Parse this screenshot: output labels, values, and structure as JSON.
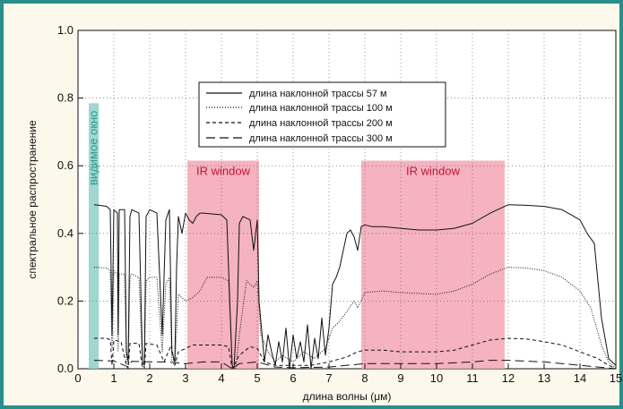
{
  "chart_data": {
    "type": "line",
    "title": "",
    "xlabel": "длина волны (μм)",
    "ylabel": "спектральное распространение",
    "xlim": [
      0,
      15
    ],
    "ylim": [
      0,
      1.0
    ],
    "x_ticks": [
      "0",
      "1",
      "2",
      "3",
      "4",
      "5",
      "6",
      "7",
      "8",
      "9",
      "10",
      "11",
      "12",
      "13",
      "14",
      "15"
    ],
    "y_ticks": [
      "0.0",
      "0.2",
      "0.4",
      "0.6",
      "0.8",
      "1.0"
    ],
    "legend_position": "top-center",
    "bands": [
      {
        "label": "видимое окно",
        "x_range": [
          0.3,
          0.58
        ],
        "color": "#8fd0c8",
        "text_color": "#2a9a90"
      },
      {
        "label": "IR window",
        "x_range": [
          3.05,
          5.05
        ],
        "color": "#f3a6b4",
        "text_color": "#c0143c"
      },
      {
        "label": "IR window",
        "x_range": [
          7.9,
          11.9
        ],
        "color": "#f3a6b4",
        "text_color": "#c0143c"
      }
    ],
    "series": [
      {
        "name": "длина наклонной трассы 57 м",
        "style": "solid",
        "x": [
          0.45,
          0.6,
          0.8,
          0.9,
          0.95,
          1.0,
          1.1,
          1.12,
          1.15,
          1.3,
          1.35,
          1.4,
          1.45,
          1.5,
          1.7,
          1.8,
          1.85,
          1.9,
          2.0,
          2.2,
          2.35,
          2.45,
          2.55,
          2.62,
          2.7,
          2.75,
          2.8,
          2.9,
          3.0,
          3.1,
          3.2,
          3.3,
          3.4,
          3.5,
          4.0,
          4.15,
          4.25,
          4.3,
          4.35,
          4.45,
          4.5,
          4.6,
          4.8,
          4.9,
          5.0,
          5.05,
          5.2,
          5.3,
          5.4,
          5.5,
          5.6,
          5.7,
          5.8,
          5.9,
          6.0,
          6.1,
          6.2,
          6.3,
          6.4,
          6.5,
          6.6,
          6.7,
          6.8,
          6.9,
          7.0,
          7.1,
          7.2,
          7.3,
          7.4,
          7.5,
          7.6,
          7.7,
          7.8,
          7.9,
          8.0,
          8.2,
          8.5,
          9.0,
          9.5,
          10.0,
          10.5,
          11.0,
          11.5,
          12.0,
          12.5,
          13.0,
          13.5,
          14.0,
          14.2,
          14.4,
          14.6,
          14.8,
          15.0
        ],
        "values": [
          0.485,
          0.483,
          0.48,
          0.47,
          0.1,
          0.47,
          0.46,
          0.1,
          0.47,
          0.47,
          0.05,
          0.02,
          0.45,
          0.47,
          0.46,
          0.02,
          0.01,
          0.45,
          0.47,
          0.46,
          0.1,
          0.44,
          0.47,
          0.05,
          0.02,
          0.3,
          0.45,
          0.4,
          0.46,
          0.44,
          0.43,
          0.45,
          0.46,
          0.46,
          0.455,
          0.44,
          0.15,
          0.01,
          0.0,
          0.2,
          0.43,
          0.45,
          0.44,
          0.35,
          0.44,
          0.2,
          0.02,
          0.1,
          0.05,
          0.01,
          0.08,
          0.02,
          0.12,
          0.0,
          0.1,
          0.03,
          0.08,
          0.02,
          0.13,
          0.0,
          0.09,
          0.03,
          0.15,
          0.04,
          0.12,
          0.25,
          0.27,
          0.3,
          0.35,
          0.4,
          0.41,
          0.39,
          0.35,
          0.42,
          0.425,
          0.42,
          0.42,
          0.415,
          0.41,
          0.41,
          0.415,
          0.43,
          0.46,
          0.485,
          0.483,
          0.48,
          0.47,
          0.44,
          0.4,
          0.37,
          0.15,
          0.03,
          0.01
        ]
      },
      {
        "name": "длина наклонной трассы 100 м",
        "style": "dotted",
        "x": [
          0.45,
          0.8,
          0.9,
          0.95,
          1.0,
          1.1,
          1.12,
          1.15,
          1.3,
          1.35,
          1.4,
          1.45,
          1.5,
          1.7,
          1.8,
          1.85,
          1.9,
          2.0,
          2.2,
          2.35,
          2.45,
          2.55,
          2.62,
          2.7,
          2.8,
          3.0,
          3.2,
          3.4,
          3.6,
          4.0,
          4.2,
          4.3,
          4.4,
          4.5,
          4.7,
          4.9,
          5.0,
          5.1,
          5.3,
          5.5,
          5.7,
          6.0,
          6.3,
          6.6,
          6.9,
          7.1,
          7.3,
          7.5,
          7.7,
          7.8,
          8.0,
          8.5,
          9.0,
          10.0,
          10.5,
          11.0,
          11.5,
          12.0,
          12.5,
          13.0,
          13.5,
          14.0,
          14.3,
          14.6,
          14.8,
          15.0
        ],
        "values": [
          0.3,
          0.298,
          0.29,
          0.06,
          0.29,
          0.28,
          0.05,
          0.28,
          0.28,
          0.02,
          0.01,
          0.27,
          0.28,
          0.27,
          0.01,
          0.0,
          0.26,
          0.27,
          0.27,
          0.05,
          0.25,
          0.27,
          0.02,
          0.01,
          0.22,
          0.2,
          0.21,
          0.23,
          0.27,
          0.27,
          0.26,
          0.01,
          0.0,
          0.1,
          0.26,
          0.24,
          0.26,
          0.1,
          0.05,
          0.02,
          0.04,
          0.02,
          0.05,
          0.03,
          0.06,
          0.12,
          0.14,
          0.17,
          0.2,
          0.18,
          0.225,
          0.23,
          0.225,
          0.22,
          0.23,
          0.25,
          0.28,
          0.3,
          0.298,
          0.29,
          0.27,
          0.23,
          0.18,
          0.07,
          0.02,
          0.0
        ]
      },
      {
        "name": "длина наклонной трассы 200 м",
        "style": "short-dash",
        "x": [
          0.45,
          0.8,
          0.9,
          0.95,
          1.0,
          1.2,
          1.35,
          1.4,
          1.45,
          1.7,
          1.8,
          1.85,
          1.9,
          2.2,
          2.4,
          2.6,
          2.7,
          2.8,
          3.0,
          3.2,
          3.5,
          4.0,
          4.2,
          4.3,
          4.5,
          4.8,
          5.0,
          5.2,
          5.5,
          6.0,
          6.5,
          7.0,
          7.5,
          7.8,
          8.0,
          8.5,
          9.0,
          10.0,
          10.5,
          11.0,
          11.5,
          12.0,
          12.5,
          13.0,
          13.5,
          14.0,
          14.5,
          14.8,
          15.0
        ],
        "values": [
          0.09,
          0.09,
          0.085,
          0.01,
          0.085,
          0.08,
          0.01,
          0.0,
          0.075,
          0.075,
          0.0,
          0.0,
          0.075,
          0.07,
          0.02,
          0.07,
          0.01,
          0.05,
          0.06,
          0.07,
          0.07,
          0.07,
          0.065,
          0.0,
          0.04,
          0.065,
          0.06,
          0.02,
          0.01,
          0.01,
          0.01,
          0.02,
          0.035,
          0.05,
          0.055,
          0.055,
          0.05,
          0.05,
          0.055,
          0.07,
          0.085,
          0.09,
          0.088,
          0.08,
          0.07,
          0.05,
          0.03,
          0.01,
          0.0
        ]
      },
      {
        "name": "длина наклонной трассы 300 м",
        "style": "long-dash",
        "x": [
          0.45,
          1.0,
          1.4,
          1.5,
          2.0,
          2.5,
          3.0,
          3.5,
          4.0,
          4.3,
          4.5,
          5.0,
          5.5,
          6.0,
          7.0,
          8.0,
          9.0,
          10.0,
          11.0,
          11.5,
          12.0,
          13.0,
          14.0,
          14.5,
          15.0
        ],
        "values": [
          0.025,
          0.023,
          0.005,
          0.022,
          0.02,
          0.02,
          0.015,
          0.02,
          0.02,
          0.0,
          0.015,
          0.02,
          0.005,
          0.003,
          0.005,
          0.015,
          0.015,
          0.015,
          0.02,
          0.025,
          0.025,
          0.02,
          0.01,
          0.005,
          0.0
        ]
      }
    ]
  }
}
